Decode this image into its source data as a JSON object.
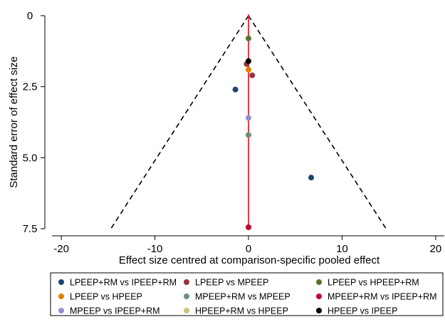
{
  "chart_data": {
    "type": "scatter",
    "subtype": "funnel-plot",
    "title": "",
    "xlabel": "Effect size centred at comparison-specific pooled effect",
    "ylabel": "Standard error of effect size",
    "xlim": [
      -21,
      21
    ],
    "ylim": [
      0,
      7.5
    ],
    "y_reversed": true,
    "x_ticks": [
      -20,
      -10,
      0,
      10,
      20
    ],
    "x_tick_labels": [
      "-20",
      "-10",
      "0",
      "10",
      "20"
    ],
    "y_ticks": [
      0,
      2.5,
      5.0,
      7.5
    ],
    "y_tick_labels": [
      "0",
      "2.5",
      "5.0",
      "7.5"
    ],
    "grid": false,
    "reference_line": {
      "x": 0,
      "color": "#e8262b"
    },
    "funnel": {
      "apex": [
        0,
        0
      ],
      "base_y": 7.5,
      "base_x": [
        -14.7,
        14.7
      ],
      "style": "dashed"
    },
    "legend_position": "bottom",
    "series": [
      {
        "name": "LPEEP+RM vs IPEEP+RM",
        "color": "#1a476f",
        "points": [
          [
            -1.4,
            2.6
          ],
          [
            6.7,
            5.7
          ]
        ]
      },
      {
        "name": "LPEEP vs MPEEP",
        "color": "#90353b",
        "points": [
          [
            -0.2,
            1.7
          ],
          [
            0.4,
            2.1
          ]
        ]
      },
      {
        "name": "LPEEP vs HPEEP+RM",
        "color": "#55752f",
        "points": [
          [
            0,
            0.8
          ]
        ]
      },
      {
        "name": "LPEEP vs HPEEP",
        "color": "#e37e00",
        "points": [
          [
            0,
            1.9
          ]
        ]
      },
      {
        "name": "MPEEP+RM vs MPEEP",
        "color": "#6e8e84",
        "points": [
          [
            0,
            4.2
          ]
        ]
      },
      {
        "name": "MPEEP+RM vs IPEEP+RM",
        "color": "#c10534",
        "points": [
          [
            0,
            7.45
          ]
        ]
      },
      {
        "name": "MPEEP vs IPEEP+RM",
        "color": "#938dd2",
        "points": [
          [
            0,
            3.6
          ]
        ]
      },
      {
        "name": "HPEEP+RM vs HPEEP",
        "color": "#cac27e",
        "points": []
      },
      {
        "name": "HPEEP vs IPEEP",
        "color": "#000000",
        "points": [
          [
            0,
            1.6
          ]
        ]
      }
    ]
  }
}
